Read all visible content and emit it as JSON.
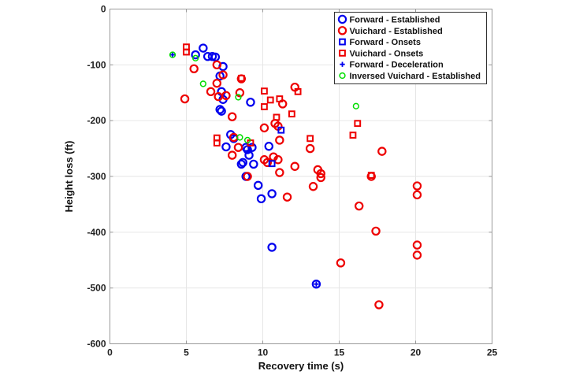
{
  "chart_data": {
    "type": "scatter",
    "title": "",
    "xlabel": "Recovery time (s)",
    "ylabel": "Height loss (ft)",
    "xlim": [
      0,
      25
    ],
    "ylim": [
      -600,
      0
    ],
    "xticks": [
      0,
      5,
      10,
      15,
      20,
      25
    ],
    "yticks": [
      0,
      -100,
      -200,
      -300,
      -400,
      -500,
      -600
    ],
    "grid": true,
    "legend_position": "top-right",
    "series": [
      {
        "name": "Forward - Established",
        "marker": "circle",
        "color": "#0000ee",
        "size": "large",
        "points": [
          [
            5.6,
            -82
          ],
          [
            6.1,
            -70
          ],
          [
            6.4,
            -85
          ],
          [
            6.7,
            -85
          ],
          [
            6.9,
            -86
          ],
          [
            7.4,
            -103
          ],
          [
            7.2,
            -120
          ],
          [
            7.3,
            -148
          ],
          [
            7.4,
            -162
          ],
          [
            7.2,
            -180
          ],
          [
            7.3,
            -183
          ],
          [
            9.2,
            -167
          ],
          [
            7.9,
            -225
          ],
          [
            7.6,
            -247
          ],
          [
            8.1,
            -232
          ],
          [
            8.9,
            -248
          ],
          [
            8.7,
            -275
          ],
          [
            9.1,
            -262
          ],
          [
            9.0,
            -252
          ],
          [
            9.3,
            -248
          ],
          [
            8.6,
            -278
          ],
          [
            9.4,
            -278
          ],
          [
            8.9,
            -300
          ],
          [
            10.4,
            -246
          ],
          [
            9.7,
            -316
          ],
          [
            10.6,
            -331
          ],
          [
            9.9,
            -340
          ],
          [
            10.6,
            -427
          ],
          [
            13.5,
            -493
          ]
        ]
      },
      {
        "name": "Vuichard - Established",
        "marker": "circle",
        "color": "#ee0000",
        "size": "large",
        "points": [
          [
            5.5,
            -107
          ],
          [
            4.9,
            -161
          ],
          [
            6.6,
            -148
          ],
          [
            7.0,
            -100
          ],
          [
            7.4,
            -118
          ],
          [
            7.0,
            -133
          ],
          [
            7.1,
            -157
          ],
          [
            7.6,
            -155
          ],
          [
            8.6,
            -125
          ],
          [
            8.5,
            -150
          ],
          [
            8.0,
            -193
          ],
          [
            8.1,
            -230
          ],
          [
            8.0,
            -262
          ],
          [
            8.4,
            -248
          ],
          [
            9.0,
            -300
          ],
          [
            10.1,
            -213
          ],
          [
            10.8,
            -205
          ],
          [
            11.0,
            -210
          ],
          [
            11.3,
            -170
          ],
          [
            12.1,
            -140
          ],
          [
            11.1,
            -235
          ],
          [
            10.1,
            -270
          ],
          [
            10.3,
            -275
          ],
          [
            10.7,
            -265
          ],
          [
            11.0,
            -270
          ],
          [
            11.1,
            -293
          ],
          [
            12.1,
            -282
          ],
          [
            11.6,
            -337
          ],
          [
            13.1,
            -250
          ],
          [
            13.3,
            -318
          ],
          [
            13.6,
            -288
          ],
          [
            13.8,
            -295
          ],
          [
            13.8,
            -302
          ],
          [
            17.1,
            -300
          ],
          [
            17.8,
            -255
          ],
          [
            16.3,
            -353
          ],
          [
            17.4,
            -398
          ],
          [
            15.1,
            -455
          ],
          [
            17.6,
            -530
          ],
          [
            20.1,
            -317
          ],
          [
            20.1,
            -333
          ],
          [
            20.1,
            -423
          ],
          [
            20.1,
            -441
          ]
        ]
      },
      {
        "name": "Forward - Onsets",
        "marker": "square",
        "color": "#0000ee",
        "size": "small",
        "points": [
          [
            11.2,
            -217
          ],
          [
            10.6,
            -277
          ]
        ]
      },
      {
        "name": "Vuichard - Onsets",
        "marker": "square",
        "color": "#ee0000",
        "size": "small",
        "points": [
          [
            5.0,
            -68
          ],
          [
            5.0,
            -77
          ],
          [
            8.6,
            -124
          ],
          [
            7.0,
            -231
          ],
          [
            7.0,
            -240
          ],
          [
            9.2,
            -240
          ],
          [
            10.1,
            -147
          ],
          [
            10.5,
            -163
          ],
          [
            11.1,
            -161
          ],
          [
            10.1,
            -175
          ],
          [
            12.3,
            -148
          ],
          [
            11.9,
            -188
          ],
          [
            10.9,
            -194
          ],
          [
            13.1,
            -232
          ],
          [
            16.2,
            -205
          ],
          [
            15.9,
            -226
          ],
          [
            17.1,
            -298
          ]
        ]
      },
      {
        "name": "Forward - Deceleration",
        "marker": "plus",
        "color": "#0000ee",
        "size": "small",
        "points": [
          [
            4.1,
            -82
          ],
          [
            13.5,
            -493
          ]
        ]
      },
      {
        "name": "Inversed Vuichard - Established",
        "marker": "circle",
        "color": "#00dd00",
        "size": "small",
        "points": [
          [
            4.1,
            -82
          ],
          [
            5.6,
            -88
          ],
          [
            6.1,
            -134
          ],
          [
            8.4,
            -158
          ],
          [
            8.5,
            -230
          ],
          [
            9.0,
            -235
          ],
          [
            16.1,
            -174
          ]
        ]
      }
    ]
  }
}
